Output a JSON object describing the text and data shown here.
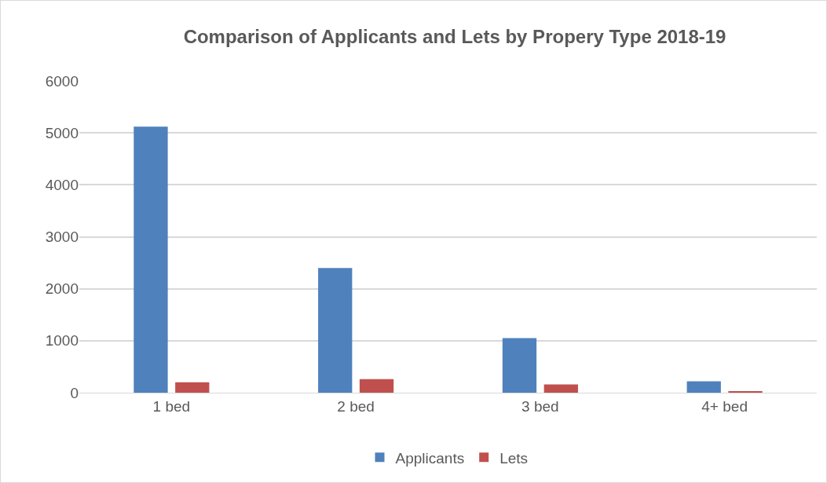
{
  "chart_data": {
    "type": "bar",
    "title": "Comparison of Applicants and Lets by Propery Type 2018-19",
    "categories": [
      "1 bed",
      "2 bed",
      "3 bed",
      "4+ bed"
    ],
    "series": [
      {
        "name": "Applicants",
        "color": "#4f81bd",
        "values": [
          5120,
          2400,
          1050,
          220
        ]
      },
      {
        "name": "Lets",
        "color": "#c0504d",
        "values": [
          200,
          260,
          160,
          20
        ]
      }
    ],
    "ylim": [
      0,
      6000
    ],
    "yticks": [
      0,
      1000,
      2000,
      3000,
      4000,
      5000,
      6000
    ],
    "grid": "y",
    "legend": "bottom"
  }
}
